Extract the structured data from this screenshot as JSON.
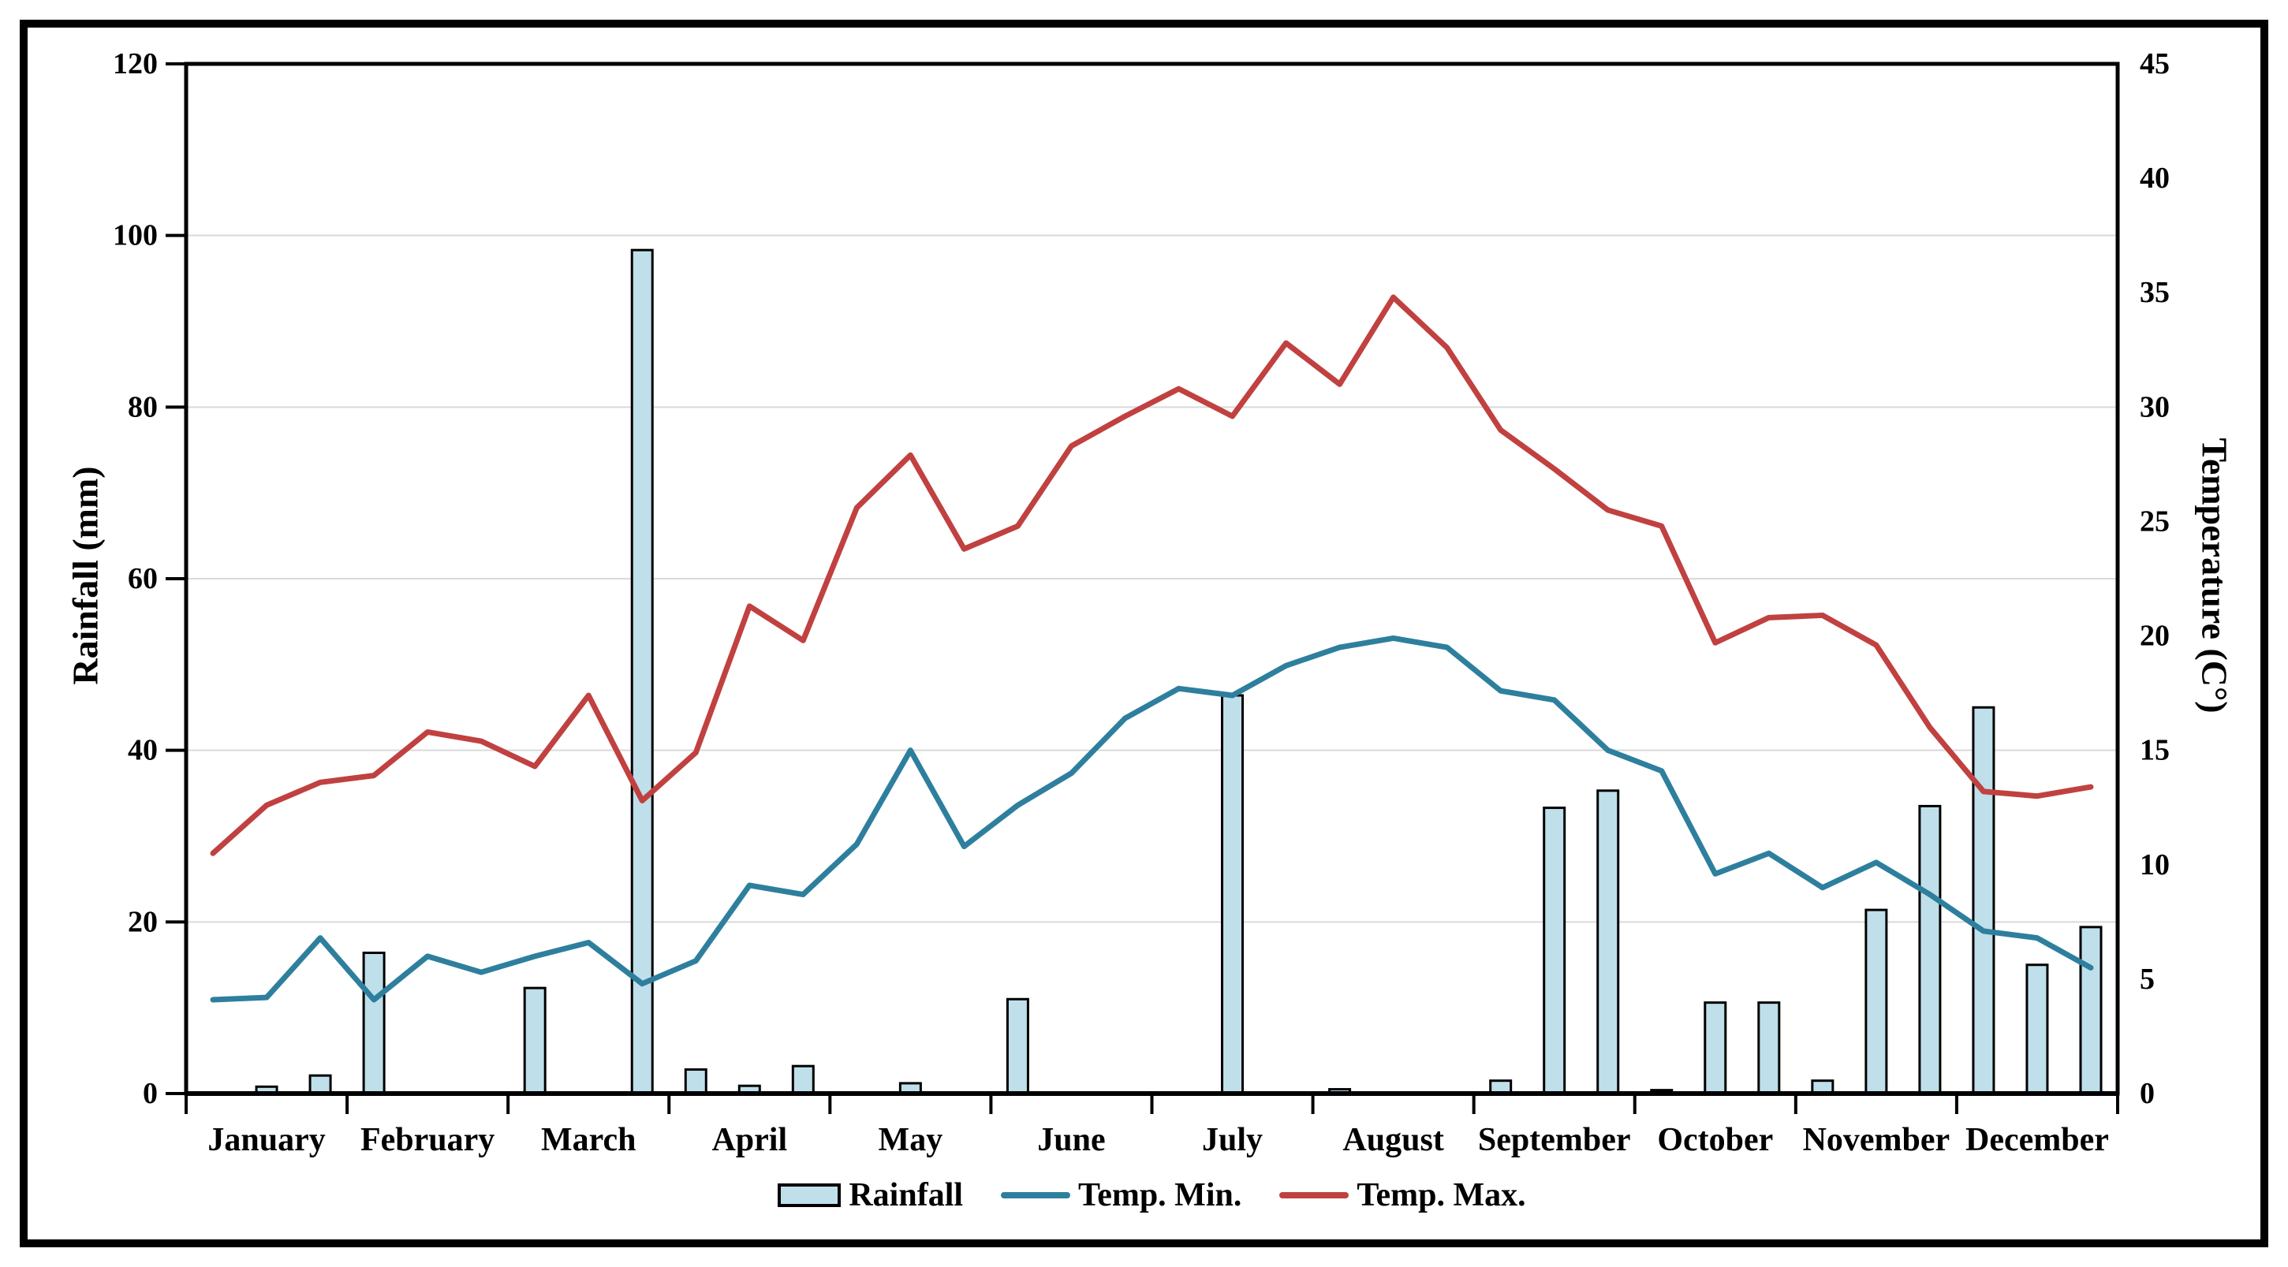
{
  "chart": {
    "left_axis_title": "Rainfall (mm)",
    "right_axis_title": "Temperature (C°)",
    "legend": {
      "rainfall_label": "Rainfall",
      "temp_min_label": "Temp. Min.",
      "temp_max_label": "Temp. Max."
    }
  },
  "colors": {
    "bar_fill": "#BFDFEA",
    "bar_border": "#000000",
    "temp_min_line": "#2E7F9E",
    "temp_max_line": "#C04140",
    "gridline": "#D9D9D9",
    "axis": "#000000",
    "background": "#FFFFFF"
  },
  "chart_data": {
    "type": "bar",
    "subtype": "combo-bar-and-lines",
    "categories_months": [
      "January",
      "February",
      "March",
      "April",
      "May",
      "June",
      "July",
      "August",
      "September",
      "October",
      "November",
      "December"
    ],
    "points_per_month": 3,
    "total_points": 36,
    "left_axis": {
      "label": "Rainfall (mm)",
      "min": 0,
      "max": 120,
      "step": 20,
      "ticks": [
        0,
        20,
        40,
        60,
        80,
        100,
        120
      ]
    },
    "right_axis": {
      "label": "Temperature (C°)",
      "min": 0,
      "max": 45,
      "step": 5,
      "ticks": [
        0,
        5,
        10,
        15,
        20,
        25,
        30,
        35,
        40,
        45
      ]
    },
    "grid": "horizontal light-gray gridlines at each left-axis step",
    "legend_position": "bottom center",
    "series": [
      {
        "name": "Rainfall",
        "type": "bar",
        "axis": "left",
        "color": "#BFDFEA",
        "border_color": "#000000",
        "values": [
          0,
          0.8,
          2.1,
          16.4,
          0,
          0,
          12.3,
          0,
          98.3,
          2.8,
          0.9,
          3.2,
          0,
          1.2,
          0,
          11,
          0,
          0,
          0,
          46.4,
          0,
          0.5,
          0,
          0,
          1.5,
          33.3,
          35.3,
          0.4,
          10.6,
          10.6,
          1.5,
          21.4,
          33.5,
          45,
          15,
          19.4
        ]
      },
      {
        "name": "Temp. Min.",
        "type": "line",
        "axis": "right",
        "color": "#2E7F9E",
        "values": [
          4.1,
          4.2,
          6.8,
          4.1,
          6.0,
          5.3,
          6.0,
          6.6,
          4.8,
          5.8,
          9.1,
          8.7,
          10.9,
          15.0,
          10.8,
          12.6,
          14.0,
          16.4,
          17.7,
          17.4,
          18.7,
          19.5,
          19.9,
          19.5,
          17.6,
          17.2,
          15.0,
          14.1,
          9.6,
          10.5,
          9.0,
          10.1,
          8.7,
          7.1,
          6.8,
          5.5
        ]
      },
      {
        "name": "Temp. Max.",
        "type": "line",
        "axis": "right",
        "color": "#C04140",
        "values": [
          10.5,
          12.6,
          13.6,
          13.9,
          15.8,
          15.4,
          14.3,
          17.4,
          12.8,
          14.9,
          21.3,
          19.8,
          25.6,
          27.9,
          23.8,
          24.8,
          28.3,
          29.6,
          30.8,
          29.6,
          32.8,
          31.0,
          34.8,
          32.6,
          29.0,
          27.3,
          25.5,
          24.8,
          19.7,
          20.8,
          20.9,
          19.6,
          16.0,
          13.2,
          13.0,
          13.4
        ]
      }
    ]
  }
}
